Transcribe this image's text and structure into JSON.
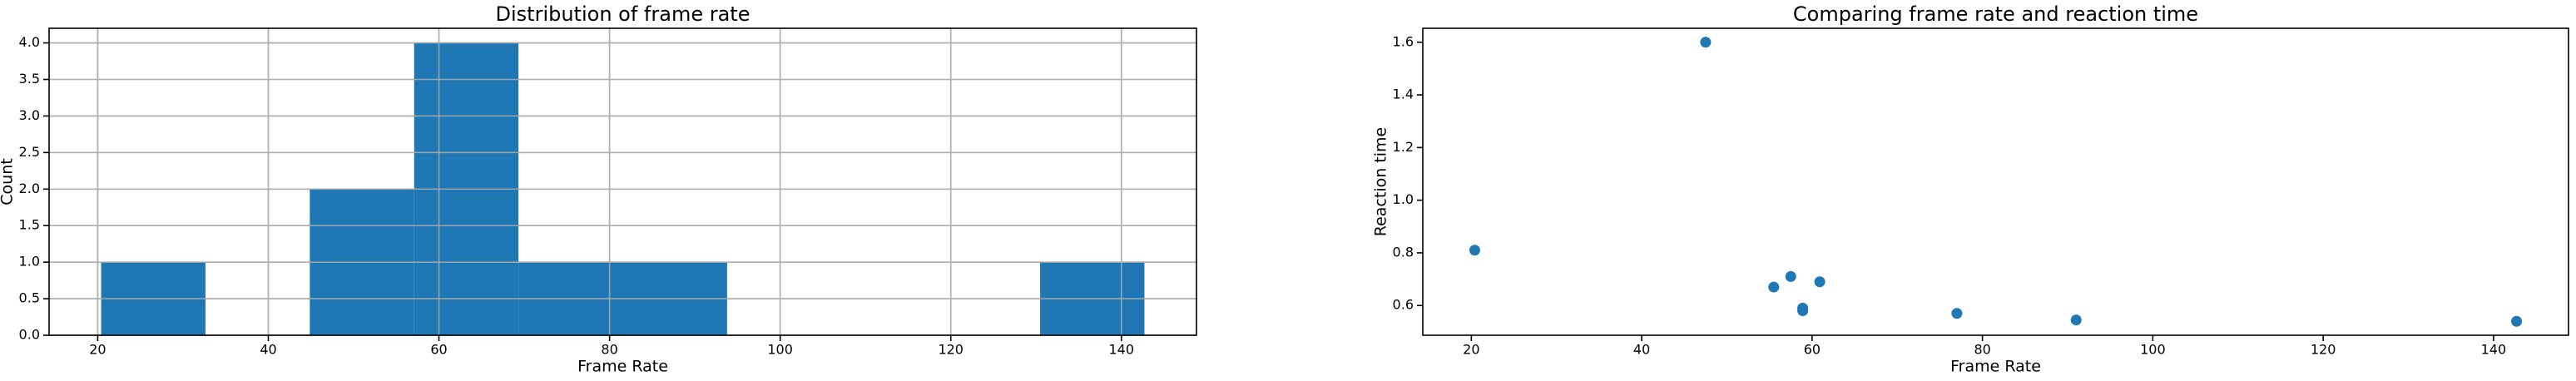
{
  "chart_data": [
    {
      "type": "histogram",
      "title": "Distribution of frame rate",
      "x_label": "Frame Rate",
      "y_label": "Count",
      "bins": [
        20.4,
        32.63,
        44.86,
        57.09,
        69.32,
        81.55,
        93.78,
        106.01,
        118.24,
        130.47,
        142.7
      ],
      "counts": [
        1,
        0,
        2,
        4,
        1,
        1,
        0,
        0,
        0,
        1
      ],
      "color": "#1f77b4",
      "xlim": [
        14.3,
        148.8
      ],
      "xticks": [
        20,
        40,
        60,
        80,
        100,
        120,
        140
      ],
      "ylim": [
        0,
        4.2
      ],
      "yticks": [
        {
          "value": 0,
          "label": "0.0"
        },
        0.5,
        {
          "value": 1,
          "label": "1.0"
        },
        1.5,
        {
          "value": 2,
          "label": "2.0"
        },
        2.5,
        {
          "value": 3,
          "label": "3.0"
        },
        3.5,
        {
          "value": 4,
          "label": "4.0"
        }
      ],
      "grid": true
    },
    {
      "type": "scatter",
      "title": "Comparing frame rate and reaction time",
      "x_label": "Frame Rate",
      "y_label": "Reaction time",
      "x": [
        20.4,
        47.5,
        55.5,
        57.5,
        58.9,
        58.9,
        60.9,
        77,
        91,
        142.7
      ],
      "y": [
        0.81,
        1.6,
        0.67,
        0.71,
        0.59,
        0.58,
        0.69,
        0.57,
        0.545,
        0.54
      ],
      "color": "#1f77b4",
      "xlim": [
        14.3,
        148.8
      ],
      "xticks": [
        20,
        40,
        60,
        80,
        100,
        120,
        140
      ],
      "ylim": [
        0.487,
        1.653
      ],
      "yticks": [
        0.6,
        0.8,
        {
          "value": 1,
          "label": "1.0"
        },
        1.2,
        1.4,
        1.6
      ],
      "grid": false
    }
  ]
}
